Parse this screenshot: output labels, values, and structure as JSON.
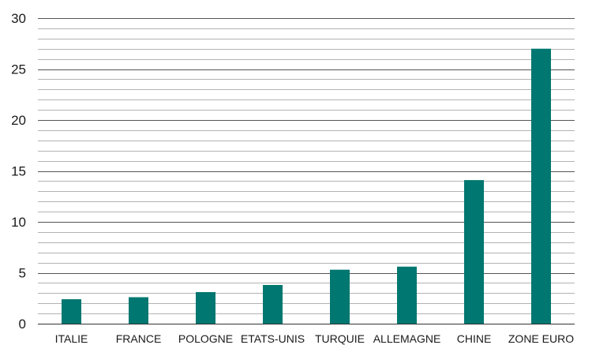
{
  "chart_data": {
    "type": "bar",
    "title": "",
    "xlabel": "",
    "ylabel": "",
    "categories": [
      "ITALIE",
      "FRANCE",
      "POLOGNE",
      "ETATS-UNIS",
      "TURQUIE",
      "ALLEMAGNE",
      "CHINE",
      "ZONE EURO"
    ],
    "values": [
      2.4,
      2.6,
      3.1,
      3.8,
      5.3,
      5.6,
      14.1,
      27.0
    ],
    "ylim": [
      0,
      30
    ],
    "yticks": [
      0,
      5,
      10,
      15,
      20,
      25,
      30
    ],
    "minor_grid_step": 1,
    "grid": true,
    "legend": "none",
    "colors": {
      "bar": "#007770",
      "major_grid": "#555555",
      "minor_grid": "#9a9a9a",
      "axis": "#333333"
    }
  }
}
